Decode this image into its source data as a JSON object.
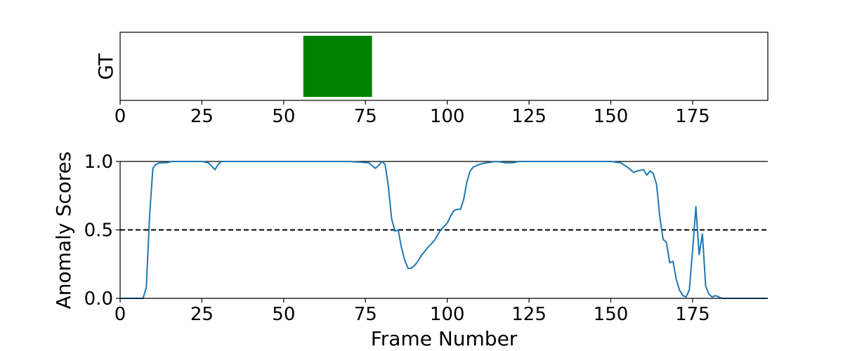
{
  "chart_data": [
    {
      "type": "area",
      "panel": "ground-truth",
      "ylabel": "GT",
      "xlim": [
        0,
        198
      ],
      "x_ticks": [
        "0",
        "25",
        "50",
        "75",
        "100",
        "125",
        "150",
        "175"
      ],
      "x_tick_values": [
        0,
        25,
        50,
        75,
        100,
        125,
        150,
        175
      ],
      "anomaly_segments": [
        {
          "start": 56,
          "end": 77
        }
      ],
      "segment_color": "#008000"
    },
    {
      "type": "line",
      "panel": "anomaly-scores",
      "xlabel": "Frame Number",
      "ylabel": "Anomaly Scores",
      "xlim": [
        0,
        198
      ],
      "ylim": [
        0,
        1.0
      ],
      "x_ticks": [
        "0",
        "25",
        "50",
        "75",
        "100",
        "125",
        "150",
        "175"
      ],
      "x_tick_values": [
        0,
        25,
        50,
        75,
        100,
        125,
        150,
        175
      ],
      "y_ticks": [
        "0.0",
        "0.5",
        "1.0"
      ],
      "y_tick_values": [
        0,
        0.5,
        1.0
      ],
      "line_color": "#1f77b4",
      "threshold": 0.5,
      "reference_line": 1.0,
      "series": [
        {
          "x": [
            0,
            7,
            8,
            9,
            10,
            11,
            12,
            14,
            16,
            20,
            25,
            27,
            29,
            30,
            31,
            33,
            40,
            50,
            60,
            70,
            76,
            78,
            79,
            80,
            81,
            82,
            83,
            84,
            85,
            86,
            87,
            88,
            89,
            90,
            91,
            92,
            94,
            96,
            98,
            100,
            101,
            102,
            103,
            104,
            105,
            106,
            107,
            108,
            110,
            112,
            115,
            118,
            120,
            122,
            125,
            130,
            140,
            150,
            153,
            155,
            157,
            158,
            160,
            161,
            162,
            163,
            164,
            165,
            166,
            167,
            168,
            169,
            170,
            171,
            172,
            173,
            174,
            175,
            176,
            177,
            178,
            179,
            180,
            181,
            182,
            183,
            184,
            185,
            186,
            188,
            198
          ],
          "y": [
            0.0,
            0.0,
            0.08,
            0.6,
            0.95,
            0.98,
            0.99,
            0.99,
            1.0,
            1.0,
            1.0,
            0.99,
            0.94,
            0.98,
            1.0,
            1.0,
            1.0,
            1.0,
            1.0,
            1.0,
            0.99,
            0.95,
            0.97,
            1.0,
            0.98,
            0.82,
            0.58,
            0.49,
            0.5,
            0.37,
            0.28,
            0.22,
            0.22,
            0.24,
            0.27,
            0.31,
            0.37,
            0.42,
            0.5,
            0.55,
            0.6,
            0.64,
            0.65,
            0.65,
            0.72,
            0.85,
            0.93,
            0.96,
            0.98,
            0.99,
            1.0,
            0.99,
            0.99,
            1.0,
            1.0,
            1.0,
            1.0,
            1.0,
            0.99,
            0.96,
            0.92,
            0.93,
            0.94,
            0.9,
            0.93,
            0.91,
            0.83,
            0.59,
            0.43,
            0.41,
            0.26,
            0.27,
            0.14,
            0.06,
            0.02,
            0.01,
            0.06,
            0.35,
            0.67,
            0.32,
            0.47,
            0.09,
            0.03,
            0.01,
            0.02,
            0.01,
            0.0,
            0.0,
            0.0,
            0.0,
            0.0
          ]
        }
      ]
    }
  ]
}
